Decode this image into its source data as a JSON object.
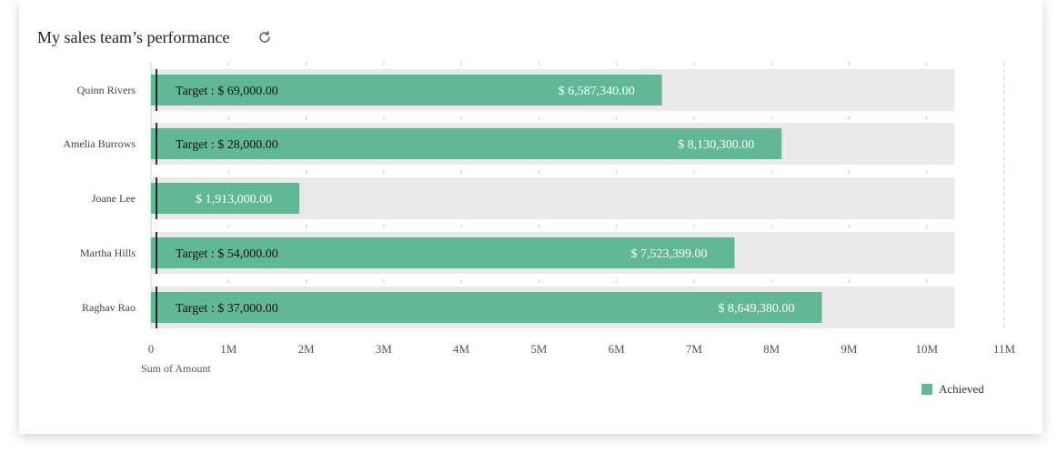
{
  "header": {
    "title": "My sales team’s performance",
    "refresh_icon": "refresh-icon"
  },
  "colors": {
    "achieved": "#61b894",
    "track": "#eaeaea",
    "target_line": "#000000",
    "label_text": "#ffffff",
    "axis_text": "#555555"
  },
  "chart_data": {
    "type": "bar",
    "orientation": "horizontal",
    "categories": [
      "Quinn Rivers",
      "Amelia Burrows",
      "Joane Lee",
      "Martha Hills",
      "Raghav Rao"
    ],
    "series": [
      {
        "name": "Achieved",
        "values": [
          6587340,
          8130300,
          1913000,
          7523399,
          8649380
        ]
      }
    ],
    "value_labels": [
      "$ 6,587,340.00",
      "$ 8,130,300.00",
      "$ 1,913,000.00",
      "$ 7,523,399.00",
      "$ 8,649,380.00"
    ],
    "targets": [
      69000,
      28000,
      null,
      54000,
      37000
    ],
    "target_labels": [
      "Target : $ 69,000.00",
      "Target : $ 28,000.00",
      "",
      "Target : $ 54,000.00",
      "Target : $ 37,000.00"
    ],
    "track_max": 10360000,
    "xlim": [
      0,
      11000000
    ],
    "xticks": [
      0,
      1000000,
      2000000,
      3000000,
      4000000,
      5000000,
      6000000,
      7000000,
      8000000,
      9000000,
      10000000,
      11000000
    ],
    "xtick_labels": [
      "0",
      "1M",
      "2M",
      "3M",
      "4M",
      "5M",
      "6M",
      "7M",
      "8M",
      "9M",
      "10M",
      "11M"
    ],
    "xlabel": "Sum of Amount",
    "ylabel": "",
    "legend": {
      "position": "bottom-right",
      "entries": [
        "Achieved"
      ]
    }
  }
}
